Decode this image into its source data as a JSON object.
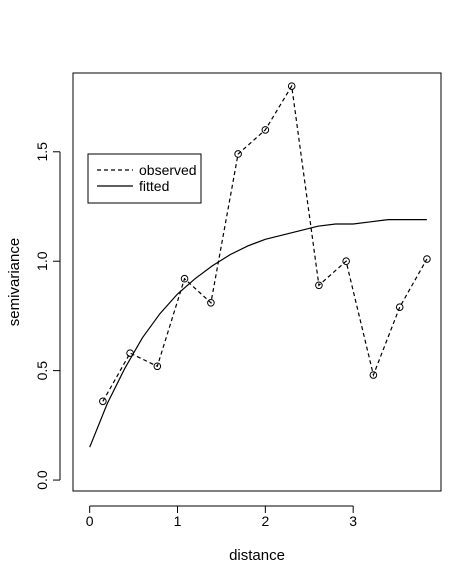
{
  "chart_data": {
    "type": "line",
    "title": "",
    "xlabel": "distance",
    "ylabel": "semivariance",
    "xlim": [
      -0.19,
      4.0
    ],
    "ylim": [
      -0.05,
      1.86
    ],
    "x_ticks": [
      0,
      1,
      2,
      3
    ],
    "x_tick_labels": [
      "0",
      "1",
      "2",
      "3"
    ],
    "y_ticks": [
      0.0,
      0.5,
      1.0,
      1.5
    ],
    "y_tick_labels": [
      "0.0",
      "0.5",
      "1.0",
      "1.5"
    ],
    "grid": false,
    "legend": {
      "position": "top-left",
      "entries": [
        {
          "label": "observed",
          "style": "dashed"
        },
        {
          "label": "fitted",
          "style": "solid"
        }
      ]
    },
    "series": [
      {
        "name": "observed",
        "style": "dashed",
        "marker": "open-circle",
        "x": [
          0.15,
          0.46,
          0.77,
          1.08,
          1.38,
          1.69,
          2.0,
          2.3,
          2.61,
          2.92,
          3.23,
          3.53,
          3.84
        ],
        "y": [
          0.36,
          0.58,
          0.52,
          0.92,
          0.81,
          1.49,
          1.6,
          1.8,
          0.89,
          1.0,
          0.48,
          0.79,
          1.01
        ]
      },
      {
        "name": "fitted",
        "style": "solid",
        "marker": "none",
        "nugget": 0.15,
        "sill": 1.2,
        "range": 0.95,
        "x": [
          0.0,
          0.2,
          0.4,
          0.6,
          0.8,
          1.0,
          1.2,
          1.4,
          1.6,
          1.8,
          2.0,
          2.2,
          2.4,
          2.6,
          2.8,
          3.0,
          3.2,
          3.4,
          3.6,
          3.84
        ],
        "y": [
          0.15,
          0.35,
          0.51,
          0.65,
          0.76,
          0.85,
          0.92,
          0.98,
          1.03,
          1.07,
          1.1,
          1.12,
          1.14,
          1.16,
          1.17,
          1.17,
          1.18,
          1.19,
          1.19,
          1.19
        ]
      }
    ]
  }
}
